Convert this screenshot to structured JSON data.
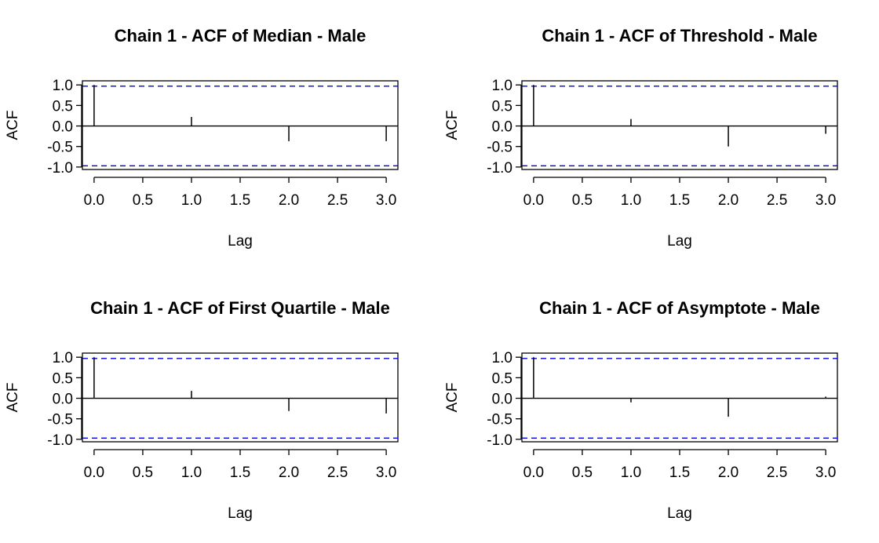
{
  "chart_data": [
    {
      "type": "bar",
      "title": "Chain 1 - ACF of Median - Male",
      "xlabel": "Lag",
      "ylabel": "ACF",
      "x": [
        0,
        1,
        2,
        3
      ],
      "values": [
        1.0,
        0.22,
        -0.37,
        -0.37
      ],
      "ci": 0.97,
      "xlim": [
        -0.12,
        3.12
      ],
      "ylim": [
        -1.06,
        1.1
      ],
      "xticks": [
        "0.0",
        "0.5",
        "1.0",
        "1.5",
        "2.0",
        "2.5",
        "3.0"
      ],
      "yticks": [
        "1.0",
        "0.5",
        "0.0",
        "-0.5",
        "-1.0"
      ],
      "colors": {
        "ci_line": "#0000ee",
        "bars": "#000000"
      }
    },
    {
      "type": "bar",
      "title": "Chain 1 - ACF of Threshold - Male",
      "xlabel": "Lag",
      "ylabel": "ACF",
      "x": [
        0,
        1,
        2,
        3
      ],
      "values": [
        1.0,
        0.17,
        -0.5,
        -0.19
      ],
      "ci": 0.97,
      "xlim": [
        -0.12,
        3.12
      ],
      "ylim": [
        -1.06,
        1.1
      ],
      "xticks": [
        "0.0",
        "0.5",
        "1.0",
        "1.5",
        "2.0",
        "2.5",
        "3.0"
      ],
      "yticks": [
        "1.0",
        "0.5",
        "0.0",
        "-0.5",
        "-1.0"
      ],
      "colors": {
        "ci_line": "#0000ee",
        "bars": "#000000"
      }
    },
    {
      "type": "bar",
      "title": "Chain 1 - ACF of First Quartile - Male",
      "xlabel": "Lag",
      "ylabel": "ACF",
      "x": [
        0,
        1,
        2,
        3
      ],
      "values": [
        1.0,
        0.18,
        -0.31,
        -0.37
      ],
      "ci": 0.97,
      "xlim": [
        -0.12,
        3.12
      ],
      "ylim": [
        -1.06,
        1.1
      ],
      "xticks": [
        "0.0",
        "0.5",
        "1.0",
        "1.5",
        "2.0",
        "2.5",
        "3.0"
      ],
      "yticks": [
        "1.0",
        "0.5",
        "0.0",
        "-0.5",
        "-1.0"
      ],
      "colors": {
        "ci_line": "#0000ee",
        "bars": "#000000"
      }
    },
    {
      "type": "bar",
      "title": "Chain 1 - ACF of Asymptote - Male",
      "xlabel": "Lag",
      "ylabel": "ACF",
      "x": [
        0,
        1,
        2,
        3
      ],
      "values": [
        1.0,
        -0.1,
        -0.45,
        0.04
      ],
      "ci": 0.97,
      "xlim": [
        -0.12,
        3.12
      ],
      "ylim": [
        -1.06,
        1.1
      ],
      "xticks": [
        "0.0",
        "0.5",
        "1.0",
        "1.5",
        "2.0",
        "2.5",
        "3.0"
      ],
      "yticks": [
        "1.0",
        "0.5",
        "0.0",
        "-0.5",
        "-1.0"
      ],
      "colors": {
        "ci_line": "#0000ee",
        "bars": "#000000"
      }
    }
  ]
}
